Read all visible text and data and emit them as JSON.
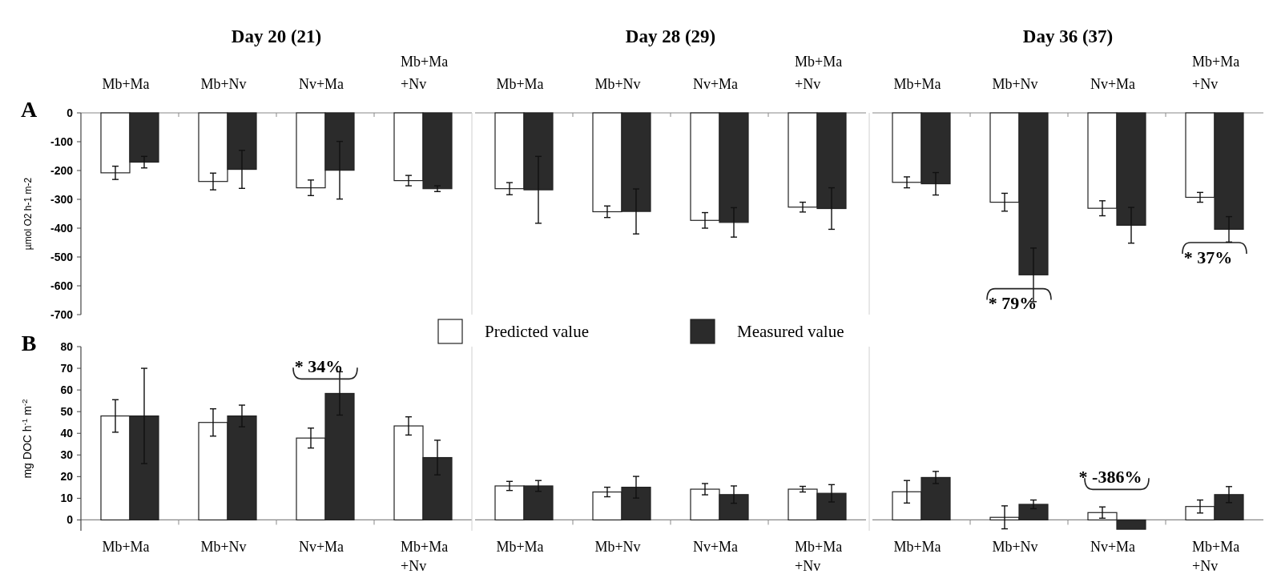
{
  "chart_data": [
    {
      "type": "bar",
      "title": "Day 20 (21)",
      "ylabel": "µmol O2 h-1 m-2",
      "categories": [
        "Mb+Ma",
        "Mb+Nv",
        "Nv+Ma",
        "Mb+Ma +Nv"
      ],
      "series": [
        {
          "color": "#ffffff",
          "values": [
            -208,
            -238,
            -260,
            -235
          ],
          "errors": [
            23,
            29,
            27,
            18
          ]
        },
        {
          "color": "#2b2b2b",
          "values": [
            -171,
            -196,
            -199,
            -263
          ],
          "errors": [
            20,
            66,
            100,
            10
          ]
        }
      ],
      "ylim": [
        -700,
        0
      ],
      "yticks": [
        -700,
        -600,
        -500,
        -400,
        -300,
        -200,
        -100,
        0
      ],
      "annotations": [
        "A"
      ]
    },
    {
      "type": "bar",
      "title": "Day 28 (29)",
      "categories": [
        "Mb+Ma",
        "Mb+Nv",
        "Nv+Ma",
        "Mb+Ma +Nv"
      ],
      "series": [
        {
          "name": "Predicted value",
          "color": "#ffffff",
          "values": [
            -263,
            -343,
            -373,
            -327
          ],
          "errors": [
            21,
            20,
            27,
            17
          ]
        },
        {
          "name": "Measured value",
          "color": "#2b2b2b",
          "values": [
            -267,
            -342,
            -380,
            -332
          ],
          "errors": [
            116,
            78,
            51,
            72
          ]
        }
      ],
      "ylim": [
        -700,
        0
      ],
      "tick_labels": "x",
      "legend": "bottom"
    },
    {
      "type": "bar",
      "title": "Day 36 (37)",
      "categories": [
        "Mb+Ma",
        "Mb+Nv",
        "Nv+Ma",
        "Mb+Ma +Nv"
      ],
      "series": [
        {
          "color": "#ffffff",
          "values": [
            -241,
            -310,
            -331,
            -293
          ],
          "errors": [
            19,
            31,
            26,
            17
          ]
        },
        {
          "color": "#2b2b2b",
          "values": [
            -246,
            -562,
            -390,
            -404
          ],
          "errors": [
            39,
            93,
            62,
            44
          ]
        }
      ],
      "ylim": [
        -700,
        0
      ],
      "tick_labels": "x",
      "annotations": [
        "* 79%",
        "* 37%"
      ]
    },
    {
      "type": "bar",
      "ylabel": "mg DOC h$^{-1}$ m$^{-2}$",
      "categories": [
        "Mb+Ma",
        "Mb+Nv",
        "Nv+Ma",
        "Mb+Ma +Nv"
      ],
      "series": [
        {
          "color": "#ffffff",
          "values": [
            48,
            45,
            37.8,
            43.4
          ],
          "errors": [
            7.5,
            6.3,
            4.6,
            4.2
          ]
        },
        {
          "color": "#2b2b2b",
          "values": [
            48,
            48,
            58.4,
            28.8
          ],
          "errors": [
            22,
            5,
            10,
            8
          ]
        }
      ],
      "ylim": [
        -5,
        80
      ],
      "yticks": [
        0,
        10,
        20,
        30,
        40,
        50,
        60,
        70,
        80
      ],
      "annotations": [
        "B",
        "* 34%"
      ]
    },
    {
      "type": "bar",
      "categories": [
        "Mb+Ma",
        "Mb+Nv",
        "Nv+Ma",
        "Mb+Ma +Nv"
      ],
      "series": [
        {
          "color": "#ffffff",
          "values": [
            15.7,
            12.9,
            14.2,
            14.2
          ],
          "errors": [
            2.1,
            2.2,
            2.6,
            1.3
          ]
        },
        {
          "color": "#2b2b2b",
          "values": [
            15.7,
            15.1,
            11.7,
            12.3
          ],
          "errors": [
            2.5,
            5,
            4,
            4
          ]
        }
      ],
      "ylim": [
        -5,
        80
      ],
      "tick_labels": "x"
    },
    {
      "type": "bar",
      "categories": [
        "Mb+Ma",
        "Mb+Nv",
        "Nv+Ma",
        "Mb+Ma +Nv"
      ],
      "series": [
        {
          "color": "#ffffff",
          "values": [
            13,
            1.2,
            3.4,
            6.2
          ],
          "errors": [
            5.2,
            5.3,
            2.6,
            3
          ]
        },
        {
          "color": "#2b2b2b",
          "values": [
            19.6,
            7.2,
            -4.3,
            11.7
          ],
          "errors": [
            2.8,
            2,
            null,
            3.7
          ]
        }
      ],
      "ylim": [
        -5,
        80
      ],
      "tick_labels": "x",
      "annotations": [
        "* -386%"
      ]
    }
  ]
}
